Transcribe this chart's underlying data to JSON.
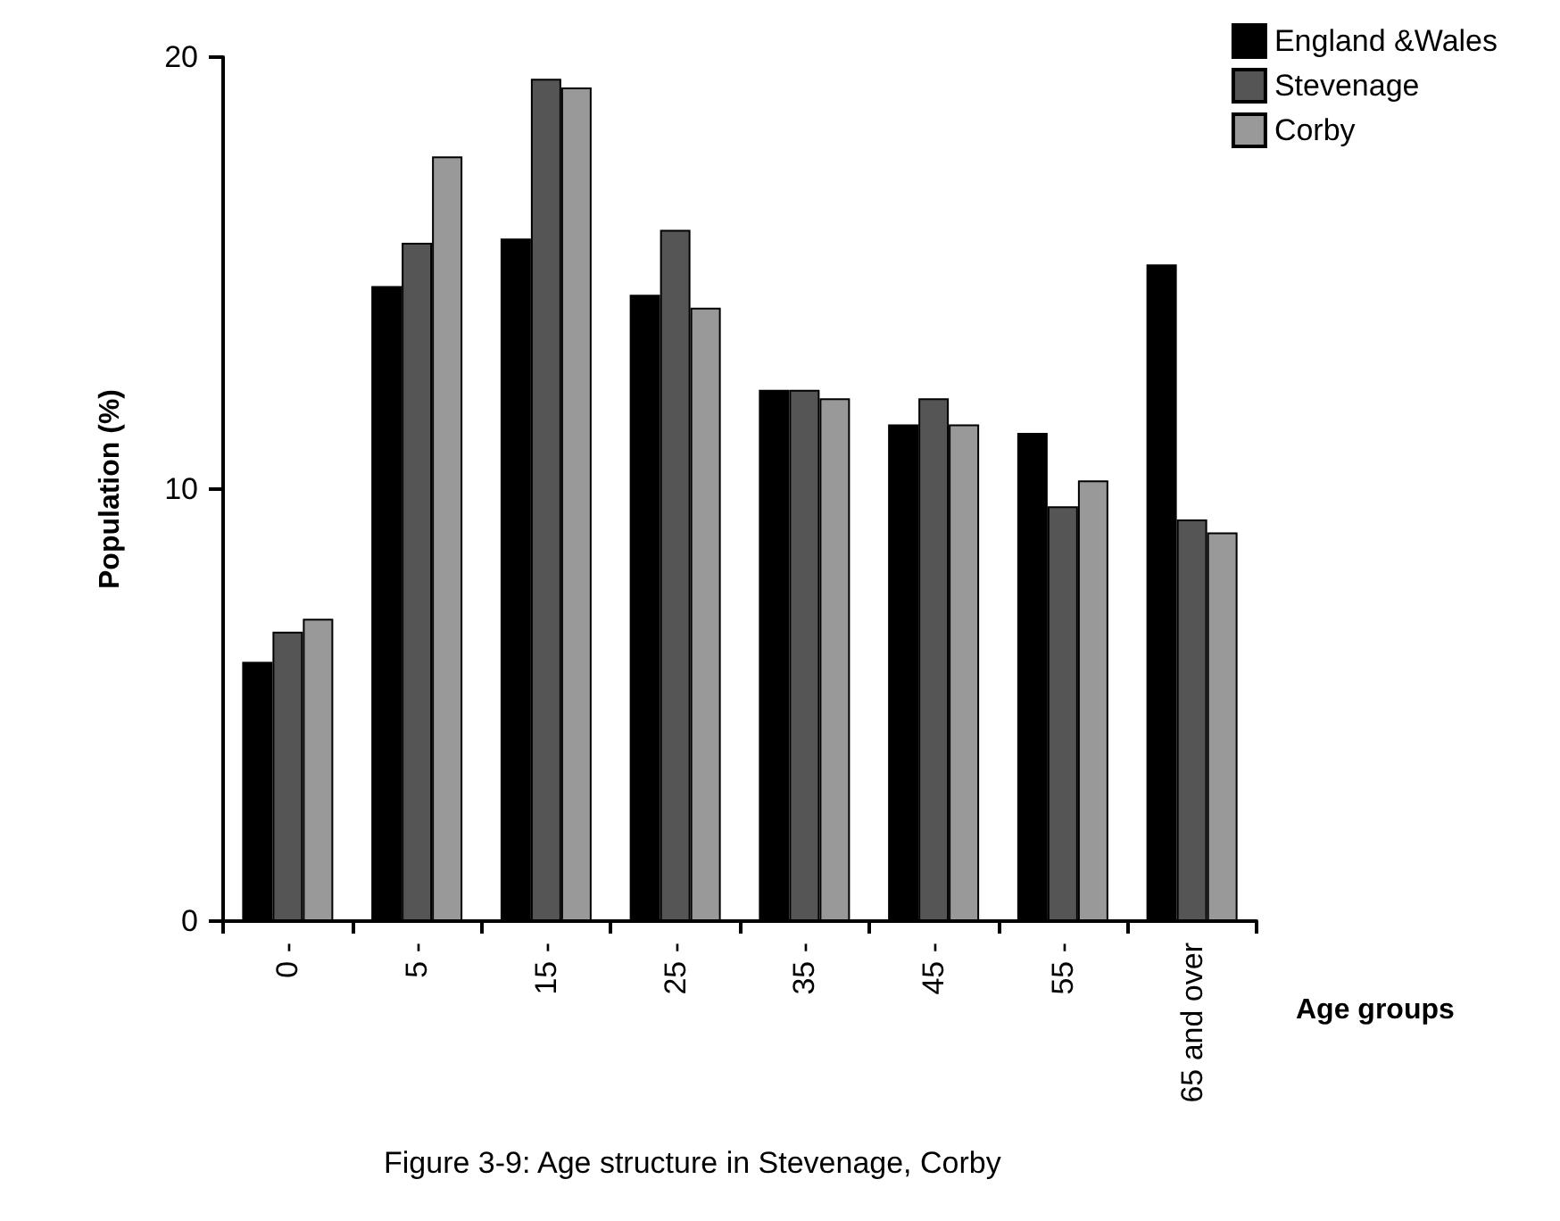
{
  "chart_data": {
    "type": "bar",
    "xlabel": "Age groups",
    "ylabel": "Population (%)",
    "categories": [
      "0 -",
      "5 -",
      "15 -",
      "25 -",
      "35 -",
      "45 -",
      "55 -",
      "65 and over"
    ],
    "series": [
      {
        "name": "England &Wales",
        "color": "#000000",
        "values": [
          6.0,
          14.7,
          15.8,
          14.5,
          12.3,
          11.5,
          11.3,
          15.2
        ]
      },
      {
        "name": "Stevenage",
        "color": "#555555",
        "values": [
          6.7,
          15.7,
          19.5,
          16.0,
          12.3,
          12.1,
          9.6,
          9.3
        ]
      },
      {
        "name": "Corby",
        "color": "#999999",
        "values": [
          7.0,
          17.7,
          19.3,
          14.2,
          12.1,
          11.5,
          10.2,
          9.0
        ]
      }
    ],
    "ylim": [
      0,
      20
    ],
    "yticks": [
      0,
      10,
      20
    ],
    "grid": false,
    "legend": "top right",
    "annotations": [
      "Figure 3-9: Age structure in Stevenage, Corby"
    ]
  }
}
